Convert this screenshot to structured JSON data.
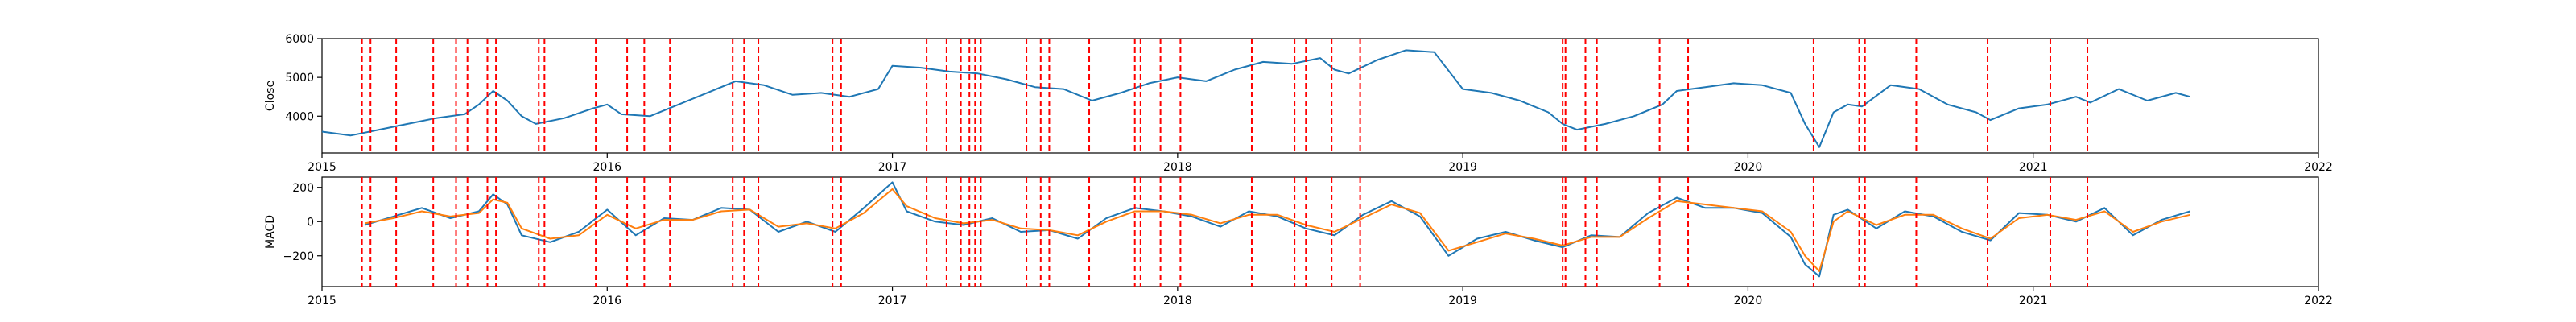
{
  "chart_data": [
    {
      "type": "line",
      "ylabel": "Close",
      "xlim": [
        2015,
        2022
      ],
      "ylim": [
        3050,
        6000
      ],
      "x_ticks": [
        "2015",
        "2016",
        "2017",
        "2018",
        "2019",
        "2020",
        "2021",
        "2022"
      ],
      "y_ticks": [
        {
          "value": 4000,
          "label": "4000"
        },
        {
          "value": 5000,
          "label": "5000"
        },
        {
          "value": 6000,
          "label": "6000"
        }
      ],
      "series": [
        {
          "color": "#1f77b4",
          "x": [
            2015.0,
            2015.1,
            2015.2,
            2015.3,
            2015.4,
            2015.5,
            2015.55,
            2015.6,
            2015.65,
            2015.7,
            2015.75,
            2015.85,
            2015.95,
            2016.0,
            2016.05,
            2016.15,
            2016.25,
            2016.35,
            2016.45,
            2016.55,
            2016.65,
            2016.75,
            2016.85,
            2016.95,
            2017.0,
            2017.1,
            2017.2,
            2017.3,
            2017.4,
            2017.5,
            2017.6,
            2017.7,
            2017.8,
            2017.9,
            2018.0,
            2018.1,
            2018.2,
            2018.3,
            2018.4,
            2018.5,
            2018.55,
            2018.6,
            2018.7,
            2018.8,
            2018.9,
            2019.0,
            2019.1,
            2019.2,
            2019.3,
            2019.35,
            2019.4,
            2019.5,
            2019.6,
            2019.7,
            2019.75,
            2019.85,
            2019.95,
            2020.05,
            2020.15,
            2020.2,
            2020.25,
            2020.3,
            2020.35,
            2020.4,
            2020.5,
            2020.6,
            2020.7,
            2020.8,
            2020.85,
            2020.95,
            2021.05,
            2021.15,
            2021.2,
            2021.3,
            2021.4,
            2021.5,
            2021.55
          ],
          "y": [
            3600,
            3500,
            3650,
            3800,
            3950,
            4050,
            4300,
            4650,
            4400,
            4000,
            3800,
            3950,
            4200,
            4300,
            4050,
            4000,
            4300,
            4600,
            4900,
            4800,
            4550,
            4600,
            4500,
            4700,
            5300,
            5250,
            5150,
            5100,
            4950,
            4750,
            4700,
            4400,
            4600,
            4850,
            5000,
            4900,
            5200,
            5400,
            5350,
            5500,
            5200,
            5100,
            5450,
            5700,
            5650,
            4700,
            4600,
            4400,
            4100,
            3800,
            3650,
            3800,
            4000,
            4300,
            4650,
            4750,
            4850,
            4800,
            4600,
            3800,
            3200,
            4100,
            4300,
            4250,
            4800,
            4700,
            4300,
            4100,
            3900,
            4200,
            4300,
            4500,
            4350,
            4700,
            4400,
            4600,
            4500
          ]
        }
      ]
    },
    {
      "type": "line",
      "ylabel": "MACD",
      "xlim": [
        2015,
        2022
      ],
      "ylim": [
        -380,
        260
      ],
      "x_ticks": [
        "2015",
        "2016",
        "2017",
        "2018",
        "2019",
        "2020",
        "2021",
        "2022"
      ],
      "y_ticks": [
        {
          "value": -200,
          "label": "−200"
        },
        {
          "value": 0,
          "label": "0"
        },
        {
          "value": 200,
          "label": "200"
        }
      ],
      "series": [
        {
          "color": "#1f77b4",
          "x": [
            2015.15,
            2015.25,
            2015.35,
            2015.45,
            2015.55,
            2015.6,
            2015.65,
            2015.7,
            2015.8,
            2015.9,
            2016.0,
            2016.1,
            2016.2,
            2016.3,
            2016.4,
            2016.5,
            2016.6,
            2016.7,
            2016.8,
            2016.9,
            2017.0,
            2017.05,
            2017.15,
            2017.25,
            2017.35,
            2017.45,
            2017.55,
            2017.65,
            2017.75,
            2017.85,
            2017.95,
            2018.05,
            2018.15,
            2018.25,
            2018.35,
            2018.45,
            2018.55,
            2018.65,
            2018.75,
            2018.85,
            2018.95,
            2019.05,
            2019.15,
            2019.25,
            2019.35,
            2019.45,
            2019.55,
            2019.65,
            2019.75,
            2019.85,
            2019.95,
            2020.05,
            2020.15,
            2020.2,
            2020.25,
            2020.3,
            2020.35,
            2020.45,
            2020.55,
            2020.65,
            2020.75,
            2020.85,
            2020.95,
            2021.05,
            2021.15,
            2021.25,
            2021.35,
            2021.45,
            2021.55
          ],
          "y": [
            -20,
            30,
            80,
            20,
            60,
            160,
            100,
            -80,
            -120,
            -60,
            70,
            -80,
            20,
            10,
            80,
            70,
            -60,
            0,
            -60,
            80,
            230,
            60,
            0,
            -20,
            20,
            -60,
            -50,
            -100,
            20,
            80,
            60,
            30,
            -30,
            60,
            30,
            -40,
            -80,
            40,
            120,
            30,
            -200,
            -100,
            -60,
            -110,
            -150,
            -80,
            -90,
            50,
            140,
            80,
            80,
            50,
            -90,
            -250,
            -320,
            40,
            70,
            -40,
            60,
            30,
            -60,
            -110,
            50,
            40,
            0,
            80,
            -80,
            10,
            60
          ]
        },
        {
          "color": "#ff7f0e",
          "x": [
            2015.15,
            2015.25,
            2015.35,
            2015.45,
            2015.55,
            2015.6,
            2015.65,
            2015.7,
            2015.8,
            2015.9,
            2016.0,
            2016.1,
            2016.2,
            2016.3,
            2016.4,
            2016.5,
            2016.6,
            2016.7,
            2016.8,
            2016.9,
            2017.0,
            2017.05,
            2017.15,
            2017.25,
            2017.35,
            2017.45,
            2017.55,
            2017.65,
            2017.75,
            2017.85,
            2017.95,
            2018.05,
            2018.15,
            2018.25,
            2018.35,
            2018.45,
            2018.55,
            2018.65,
            2018.75,
            2018.85,
            2018.95,
            2019.05,
            2019.15,
            2019.25,
            2019.35,
            2019.45,
            2019.55,
            2019.65,
            2019.75,
            2019.85,
            2019.95,
            2020.05,
            2020.15,
            2020.2,
            2020.25,
            2020.3,
            2020.35,
            2020.45,
            2020.55,
            2020.65,
            2020.75,
            2020.85,
            2020.95,
            2021.05,
            2021.15,
            2021.25,
            2021.35,
            2021.45,
            2021.55
          ],
          "y": [
            -10,
            20,
            60,
            30,
            50,
            130,
            110,
            -40,
            -100,
            -80,
            40,
            -40,
            10,
            10,
            60,
            70,
            -30,
            -10,
            -40,
            50,
            190,
            90,
            20,
            -10,
            10,
            -40,
            -50,
            -80,
            0,
            60,
            60,
            40,
            -10,
            40,
            40,
            -20,
            -60,
            20,
            100,
            50,
            -170,
            -120,
            -70,
            -100,
            -140,
            -90,
            -90,
            20,
            120,
            100,
            80,
            60,
            -60,
            -200,
            -290,
            0,
            60,
            -20,
            40,
            40,
            -40,
            -100,
            20,
            40,
            10,
            60,
            -60,
            0,
            40
          ]
        }
      ]
    }
  ],
  "event_lines": {
    "color": "#ff0000",
    "dates": [
      2015.14,
      2015.17,
      2015.26,
      2015.39,
      2015.47,
      2015.51,
      2015.58,
      2015.61,
      2015.76,
      2015.78,
      2015.96,
      2016.07,
      2016.13,
      2016.22,
      2016.44,
      2016.48,
      2016.53,
      2016.79,
      2016.82,
      2017.12,
      2017.19,
      2017.24,
      2017.27,
      2017.29,
      2017.31,
      2017.47,
      2017.52,
      2017.55,
      2017.69,
      2017.85,
      2017.87,
      2017.94,
      2018.01,
      2018.26,
      2018.41,
      2018.45,
      2018.54,
      2018.64,
      2019.35,
      2019.36,
      2019.43,
      2019.47,
      2019.69,
      2019.79,
      2020.23,
      2020.39,
      2020.41,
      2020.59,
      2020.84,
      2021.06,
      2021.19
    ]
  }
}
